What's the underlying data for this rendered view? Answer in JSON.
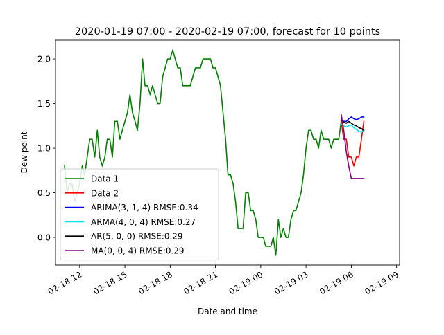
{
  "chart_data": {
    "type": "line",
    "title": "2020-01-19 07:00 - 2020-02-19 07:00, forecast for 10 points",
    "xlabel": "Date and time",
    "ylabel": "Dew point",
    "x_ticks": [
      "02-18 12",
      "02-18 15",
      "02-18 18",
      "02-18 21",
      "02-19 00",
      "02-19 03",
      "02-19 06",
      "02-19 09"
    ],
    "x_tick_hours": [
      12,
      15,
      18,
      21,
      24,
      27,
      30,
      33
    ],
    "xlim_hours": [
      10.4,
      33.2
    ],
    "y_ticks": [
      "0.0",
      "0.5",
      "1.0",
      "1.5",
      "2.0"
    ],
    "y_tick_values": [
      0.0,
      0.5,
      1.0,
      1.5,
      2.0
    ],
    "ylim": [
      -0.31,
      2.21
    ],
    "grid": false,
    "legend_position": "lower-left",
    "series": [
      {
        "name": "Data 1",
        "color": "#008000",
        "points": [
          [
            11.0,
            0.8
          ],
          [
            11.17,
            0.5
          ],
          [
            11.33,
            0.6
          ],
          [
            11.5,
            0.6
          ],
          [
            11.67,
            0.4
          ],
          [
            11.83,
            0.5
          ],
          [
            12.0,
            0.6
          ],
          [
            12.17,
            0.8
          ],
          [
            12.33,
            0.7
          ],
          [
            12.5,
            0.9
          ],
          [
            12.67,
            1.1
          ],
          [
            12.83,
            1.1
          ],
          [
            13.0,
            0.9
          ],
          [
            13.17,
            1.2
          ],
          [
            13.33,
            0.9
          ],
          [
            13.5,
            0.8
          ],
          [
            13.67,
            0.9
          ],
          [
            13.83,
            1.1
          ],
          [
            14.0,
            1.1
          ],
          [
            14.17,
            0.9
          ],
          [
            14.33,
            1.3
          ],
          [
            14.5,
            1.3
          ],
          [
            14.67,
            1.1
          ],
          [
            14.83,
            1.2
          ],
          [
            15.0,
            1.3
          ],
          [
            15.17,
            1.4
          ],
          [
            15.33,
            1.6
          ],
          [
            15.5,
            1.4
          ],
          [
            15.67,
            1.3
          ],
          [
            15.83,
            1.2
          ],
          [
            16.0,
            1.5
          ],
          [
            16.17,
            2.0
          ],
          [
            16.33,
            1.7
          ],
          [
            16.5,
            1.7
          ],
          [
            16.67,
            1.6
          ],
          [
            16.83,
            1.7
          ],
          [
            17.0,
            1.6
          ],
          [
            17.17,
            1.5
          ],
          [
            17.33,
            1.5
          ],
          [
            17.5,
            1.8
          ],
          [
            17.67,
            1.9
          ],
          [
            17.83,
            2.0
          ],
          [
            18.0,
            2.0
          ],
          [
            18.17,
            2.1
          ],
          [
            18.33,
            2.0
          ],
          [
            18.5,
            1.9
          ],
          [
            18.67,
            1.9
          ],
          [
            18.83,
            1.7
          ],
          [
            19.0,
            1.7
          ],
          [
            19.17,
            1.7
          ],
          [
            19.33,
            1.7
          ],
          [
            19.5,
            1.8
          ],
          [
            19.67,
            1.9
          ],
          [
            19.83,
            1.9
          ],
          [
            20.0,
            1.9
          ],
          [
            20.17,
            2.0
          ],
          [
            20.33,
            2.0
          ],
          [
            20.5,
            2.0
          ],
          [
            20.67,
            2.0
          ],
          [
            20.83,
            1.9
          ],
          [
            21.0,
            1.9
          ],
          [
            21.17,
            1.8
          ],
          [
            21.33,
            1.7
          ],
          [
            21.5,
            1.4
          ],
          [
            21.67,
            1.1
          ],
          [
            21.83,
            0.7
          ],
          [
            22.0,
            0.7
          ],
          [
            22.17,
            0.6
          ],
          [
            22.33,
            0.4
          ],
          [
            22.5,
            0.1
          ],
          [
            22.67,
            0.1
          ],
          [
            22.83,
            0.1
          ],
          [
            23.0,
            0.5
          ],
          [
            23.17,
            0.5
          ],
          [
            23.33,
            0.3
          ],
          [
            23.5,
            0.3
          ],
          [
            23.67,
            0.2
          ],
          [
            23.83,
            0.0
          ],
          [
            24.0,
            0.0
          ],
          [
            24.17,
            0.0
          ],
          [
            24.33,
            -0.1
          ],
          [
            24.5,
            -0.1
          ],
          [
            24.67,
            -0.1
          ],
          [
            24.83,
            0.0
          ],
          [
            25.0,
            -0.2
          ],
          [
            25.17,
            0.2
          ],
          [
            25.33,
            0.0
          ],
          [
            25.5,
            0.1
          ],
          [
            25.67,
            0.0
          ],
          [
            25.83,
            0.0
          ],
          [
            26.0,
            0.2
          ],
          [
            26.17,
            0.3
          ],
          [
            26.33,
            0.3
          ],
          [
            26.5,
            0.4
          ],
          [
            26.67,
            0.5
          ],
          [
            26.83,
            0.7
          ],
          [
            27.0,
            1.0
          ],
          [
            27.17,
            1.2
          ],
          [
            27.33,
            1.2
          ],
          [
            27.5,
            1.1
          ],
          [
            27.67,
            1.1
          ],
          [
            27.83,
            1.0
          ],
          [
            28.0,
            1.2
          ],
          [
            28.17,
            1.1
          ],
          [
            28.33,
            1.1
          ],
          [
            28.5,
            1.1
          ],
          [
            28.67,
            1.0
          ],
          [
            28.83,
            1.1
          ],
          [
            29.0,
            1.1
          ],
          [
            29.17,
            1.1
          ],
          [
            29.33,
            1.3
          ]
        ]
      },
      {
        "name": "Data 2",
        "color": "#ff0000",
        "points": [
          [
            29.33,
            1.3
          ],
          [
            29.5,
            1.1
          ],
          [
            29.67,
            1.1
          ],
          [
            29.83,
            0.9
          ],
          [
            30.0,
            0.9
          ],
          [
            30.17,
            0.8
          ],
          [
            30.33,
            0.9
          ],
          [
            30.5,
            0.9
          ],
          [
            30.67,
            1.1
          ],
          [
            30.83,
            1.3
          ]
        ]
      },
      {
        "name": "ARIMA(3, 1, 4) RMSE:0.34",
        "color": "#0000ff",
        "points": [
          [
            29.33,
            1.32
          ],
          [
            29.5,
            1.3
          ],
          [
            29.67,
            1.3
          ],
          [
            29.83,
            1.33
          ],
          [
            30.0,
            1.35
          ],
          [
            30.17,
            1.33
          ],
          [
            30.33,
            1.32
          ],
          [
            30.5,
            1.33
          ],
          [
            30.67,
            1.35
          ],
          [
            30.83,
            1.35
          ]
        ]
      },
      {
        "name": "ARMA(4, 0, 4) RMSE:0.27",
        "color": "#00e5e5",
        "points": [
          [
            29.33,
            1.27
          ],
          [
            29.5,
            1.25
          ],
          [
            29.67,
            1.24
          ],
          [
            29.83,
            1.25
          ],
          [
            30.0,
            1.26
          ],
          [
            30.17,
            1.23
          ],
          [
            30.33,
            1.21
          ],
          [
            30.5,
            1.19
          ],
          [
            30.67,
            1.18
          ],
          [
            30.83,
            1.2
          ]
        ]
      },
      {
        "name": "AR(5, 0, 0) RMSE:0.29",
        "color": "#000000",
        "points": [
          [
            29.33,
            1.31
          ],
          [
            29.5,
            1.29
          ],
          [
            29.67,
            1.28
          ],
          [
            29.83,
            1.3
          ],
          [
            30.0,
            1.28
          ],
          [
            30.17,
            1.26
          ],
          [
            30.33,
            1.25
          ],
          [
            30.5,
            1.23
          ],
          [
            30.67,
            1.22
          ],
          [
            30.83,
            1.2
          ]
        ]
      },
      {
        "name": "MA(0, 0, 4) RMSE:0.29",
        "color": "#800080",
        "points": [
          [
            29.33,
            1.38
          ],
          [
            29.5,
            1.2
          ],
          [
            29.67,
            0.96
          ],
          [
            29.83,
            0.8
          ],
          [
            30.0,
            0.66
          ],
          [
            30.17,
            0.66
          ],
          [
            30.33,
            0.66
          ],
          [
            30.5,
            0.66
          ],
          [
            30.67,
            0.66
          ],
          [
            30.83,
            0.66
          ]
        ]
      }
    ]
  }
}
